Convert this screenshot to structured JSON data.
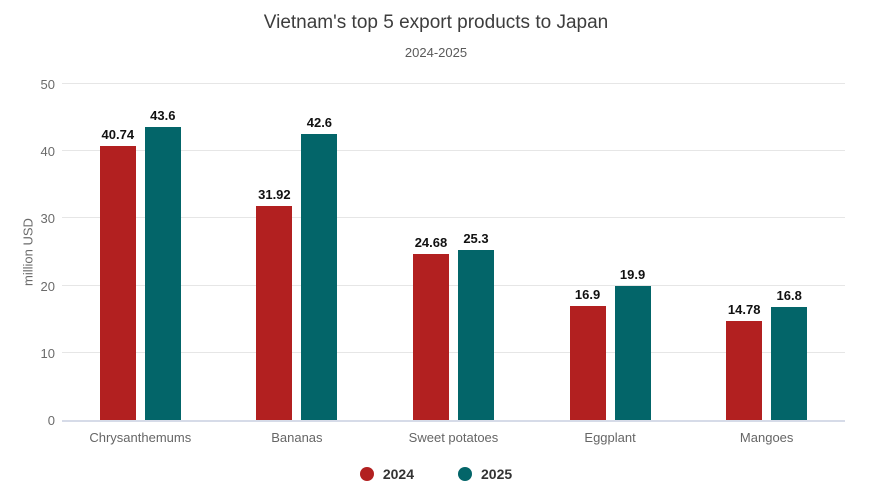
{
  "chart_data": {
    "type": "bar",
    "title": "Vietnam's top 5 export products to Japan",
    "subtitle": "2024-2025",
    "xlabel": "",
    "ylabel": "million USD",
    "ylim": [
      0,
      50
    ],
    "yticks": [
      0,
      10,
      20,
      30,
      40,
      50
    ],
    "grid": true,
    "legend_position": "bottom",
    "categories": [
      "Chrysanthemums",
      "Bananas",
      "Sweet potatoes",
      "Eggplant",
      "Mangoes"
    ],
    "series": [
      {
        "name": "2024",
        "color": "#b22020",
        "values": [
          40.74,
          31.92,
          24.68,
          16.9,
          14.78
        ]
      },
      {
        "name": "2025",
        "color": "#036569",
        "values": [
          43.6,
          42.6,
          25.3,
          19.9,
          16.8
        ]
      }
    ]
  },
  "colors": {
    "background": "#ffffff",
    "gridline": "#e6e6e6",
    "axis_line": "#d6dbe8",
    "title_text": "#3d3d3d",
    "subtitle_text": "#5a5a5a",
    "tick_text": "#6b6b6b",
    "category_text": "#666666",
    "value_label_text": "#111111",
    "legend_text": "#333333"
  }
}
